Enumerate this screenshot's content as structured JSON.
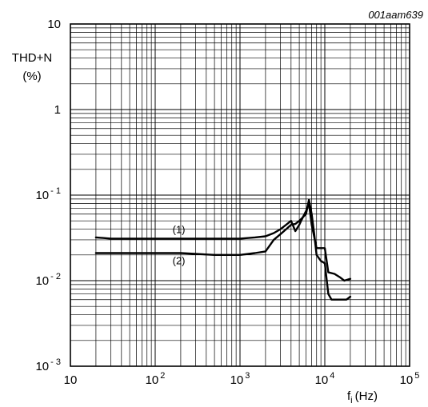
{
  "chart_data": {
    "type": "line",
    "code": "001aam639",
    "y_axis": {
      "title_line1": "THD+N",
      "title_line2": "(%)",
      "scale": "log",
      "ylim": [
        0.001,
        10
      ],
      "ticks": [
        {
          "value": 10,
          "base": "10",
          "exp": ""
        },
        {
          "value": 1,
          "base": "1",
          "exp": ""
        },
        {
          "value": 0.1,
          "base": "10",
          "exp": "-1"
        },
        {
          "value": 0.01,
          "base": "10",
          "exp": "-2"
        },
        {
          "value": 0.001,
          "base": "10",
          "exp": "-3"
        }
      ]
    },
    "x_axis": {
      "label_main": "f",
      "label_sub": "i",
      "label_unit": "(Hz)",
      "scale": "log",
      "xlim": [
        10,
        100000
      ],
      "ticks": [
        {
          "value": 10,
          "base": "10",
          "exp": ""
        },
        {
          "value": 100,
          "base": "10",
          "exp": "2"
        },
        {
          "value": 1000,
          "base": "10",
          "exp": "3"
        },
        {
          "value": 10000,
          "base": "10",
          "exp": "4"
        },
        {
          "value": 100000,
          "base": "10",
          "exp": "5"
        }
      ]
    },
    "grid": true,
    "series": [
      {
        "name": "(1)",
        "color": "#000000",
        "points": [
          [
            20,
            0.032
          ],
          [
            30,
            0.031
          ],
          [
            50,
            0.031
          ],
          [
            100,
            0.031
          ],
          [
            200,
            0.031
          ],
          [
            500,
            0.031
          ],
          [
            1000,
            0.031
          ],
          [
            1500,
            0.032
          ],
          [
            2000,
            0.033
          ],
          [
            2500,
            0.036
          ],
          [
            3000,
            0.04
          ],
          [
            3500,
            0.045
          ],
          [
            4000,
            0.05
          ],
          [
            4500,
            0.038
          ],
          [
            5000,
            0.045
          ],
          [
            5500,
            0.055
          ],
          [
            6000,
            0.065
          ],
          [
            6500,
            0.08
          ],
          [
            7000,
            0.045
          ],
          [
            8000,
            0.024
          ],
          [
            10000,
            0.024
          ],
          [
            11000,
            0.0125
          ],
          [
            13000,
            0.012
          ],
          [
            15000,
            0.011
          ],
          [
            17000,
            0.01
          ],
          [
            20000,
            0.0105
          ]
        ]
      },
      {
        "name": "(2)",
        "color": "#000000",
        "points": [
          [
            20,
            0.021
          ],
          [
            30,
            0.021
          ],
          [
            50,
            0.021
          ],
          [
            100,
            0.021
          ],
          [
            200,
            0.021
          ],
          [
            500,
            0.02
          ],
          [
            1000,
            0.02
          ],
          [
            1500,
            0.021
          ],
          [
            2000,
            0.022
          ],
          [
            2500,
            0.03
          ],
          [
            3000,
            0.035
          ],
          [
            3500,
            0.04
          ],
          [
            4000,
            0.045
          ],
          [
            4500,
            0.046
          ],
          [
            5000,
            0.05
          ],
          [
            5500,
            0.055
          ],
          [
            6000,
            0.06
          ],
          [
            6500,
            0.088
          ],
          [
            7000,
            0.06
          ],
          [
            7500,
            0.035
          ],
          [
            8000,
            0.02
          ],
          [
            9000,
            0.017
          ],
          [
            10000,
            0.016
          ],
          [
            11000,
            0.007
          ],
          [
            12000,
            0.006
          ],
          [
            14000,
            0.006
          ],
          [
            16000,
            0.006
          ],
          [
            18000,
            0.006
          ],
          [
            20000,
            0.0065
          ]
        ]
      }
    ],
    "annotations": [
      {
        "text": "(1)",
        "x": 160,
        "y": 0.036
      },
      {
        "text": "(2)",
        "x": 160,
        "y": 0.0155
      }
    ]
  }
}
